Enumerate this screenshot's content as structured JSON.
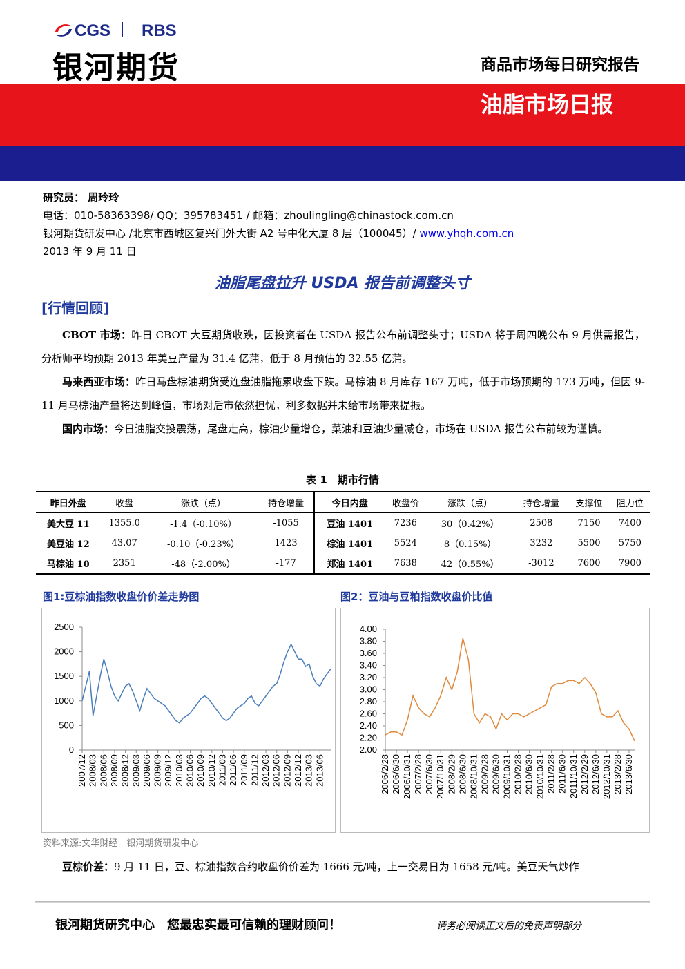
{
  "header": {
    "logo_left": "CGS",
    "logo_right": "RBS",
    "company": "银河期货",
    "report_series": "商品市场每日研究报告",
    "report_name": "油脂市场日报"
  },
  "author": {
    "label": "研究员：",
    "name": "周玲玲",
    "contact": "电话：010-58363398/ QQ：395783451 / 邮箱：zhoulingling@chinastock.com.cn",
    "address": "银河期货研发中心 /北京市西城区复兴门外大街 A2 号中化大厦 8 层（100045）/ ",
    "website": "www.yhqh.com.cn",
    "date": "2013 年 9 月 11 日"
  },
  "title": "油脂尾盘拉升 USDA 报告前调整头寸",
  "section": "[行情回顾]",
  "paragraphs": [
    {
      "lead": "CBOT 市场：",
      "text": "昨日 CBOT 大豆期货收跌，因投资者在 USDA 报告公布前调整头寸；USDA 将于周四晚公布 9 月供需报告，分析师平均预期 2013 年美豆产量为 31.4 亿蒲，低于 8 月预估的 32.55 亿蒲。"
    },
    {
      "lead": "马来西亚市场：",
      "text": "昨日马盘棕油期货受连盘油脂拖累收盘下跌。马棕油 8 月库存 167 万吨，低于市场预期的 173 万吨，但因 9-11 月马棕油产量将达到峰值，市场对后市依然担忧，利多数据并未给市场带来提振。"
    },
    {
      "lead": "国内市场：",
      "text": "今日油脂交投震荡，尾盘走高，棕油少量增仓，菜油和豆油少量减仓，市场在 USDA 报告公布前较为谨慎。"
    }
  ],
  "table": {
    "caption": "表 1　期市行情",
    "header": [
      "昨日外盘",
      "收盘",
      "涨跌（点）",
      "持仓增量",
      "今日内盘",
      "收盘价",
      "涨跌（点）",
      "持仓增量",
      "支撑位",
      "阻力位"
    ],
    "rows": [
      [
        "美大豆 11",
        "1355.0",
        "-1.4（-0.10%）",
        "-1055",
        "豆油 1401",
        "7236",
        "30（0.42%）",
        "2508",
        "7150",
        "7400"
      ],
      [
        "美豆油 12",
        "43.07",
        "-0.10（-0.23%）",
        "1423",
        "棕油 1401",
        "5524",
        "8（0.15%）",
        "3232",
        "5500",
        "5750"
      ],
      [
        "马棕油 10",
        "2351",
        "-48（-2.00%）",
        "-177",
        "郑油 1401",
        "7638",
        "42（0.55%）",
        "-3012",
        "7600",
        "7900"
      ]
    ]
  },
  "chart_data": [
    {
      "type": "line",
      "title": "图1:豆棕油指数收盘价价差走势图",
      "color": "#4a7ebb",
      "categories": [
        "2007/12",
        null,
        null,
        "2008/03",
        null,
        null,
        "2008/06",
        null,
        null,
        "2008/09",
        null,
        null,
        "2008/12",
        null,
        null,
        "2009/03",
        null,
        null,
        "2009/06",
        null,
        null,
        "2009/09",
        null,
        null,
        "2009/12",
        null,
        null,
        "2010/03",
        null,
        null,
        "2010/06",
        null,
        null,
        "2010/09",
        null,
        null,
        "2010/12",
        null,
        null,
        "2011/03",
        null,
        null,
        "2011/06",
        null,
        null,
        "2011/09",
        null,
        null,
        "2011/12",
        null,
        null,
        "2012/03",
        null,
        null,
        "2012/06",
        null,
        null,
        "2012/09",
        null,
        null,
        "2012/12",
        null,
        null,
        "2013/03",
        null,
        null,
        "2013/06",
        null,
        null,
        null
      ],
      "values": [
        1000,
        1300,
        1600,
        700,
        1100,
        1500,
        1850,
        1600,
        1300,
        1100,
        1000,
        1150,
        1300,
        1350,
        1200,
        1000,
        800,
        1050,
        1250,
        1150,
        1050,
        1000,
        950,
        900,
        800,
        700,
        600,
        550,
        650,
        700,
        750,
        850,
        950,
        1050,
        1100,
        1050,
        950,
        850,
        750,
        650,
        600,
        650,
        750,
        850,
        900,
        950,
        1050,
        1100,
        950,
        900,
        1000,
        1100,
        1200,
        1300,
        1350,
        1550,
        1800,
        2000,
        2150,
        2000,
        1850,
        1850,
        1700,
        1750,
        1500,
        1350,
        1300,
        1450,
        1550,
        1650
      ],
      "ylim": [
        0,
        2500
      ],
      "yticks": [
        0,
        500,
        1000,
        1500,
        2000,
        2500
      ],
      "grid": false
    },
    {
      "type": "line",
      "title": "图2：豆油与豆粕指数收盘价比值",
      "color": "#e08a3c",
      "categories": [
        "2006/2/28",
        null,
        "2006/6/30",
        null,
        "2006/10/31",
        null,
        "2007/2/28",
        null,
        "2007/6/30",
        null,
        "2007/10/31",
        null,
        "2008/2/29",
        null,
        "2008/6/30",
        null,
        "2008/10/31",
        null,
        "2009/2/28",
        null,
        "2009/6/30",
        null,
        "2009/10/31",
        null,
        "2010/2/28",
        null,
        "2010/6/30",
        null,
        "2010/10/31",
        null,
        "2011/2/28",
        null,
        "2011/6/30",
        null,
        "2011/10/31",
        null,
        "2012/2/29",
        null,
        "2012/6/30",
        null,
        "2012/10/31",
        null,
        "2013/2/28",
        null,
        "2013/6/30",
        null
      ],
      "values": [
        2.25,
        2.3,
        2.3,
        2.25,
        2.5,
        2.9,
        2.7,
        2.6,
        2.55,
        2.7,
        2.9,
        3.2,
        3.0,
        3.3,
        3.85,
        3.5,
        2.6,
        2.45,
        2.6,
        2.55,
        2.35,
        2.6,
        2.5,
        2.6,
        2.6,
        2.55,
        2.6,
        2.65,
        2.7,
        2.75,
        3.05,
        3.1,
        3.1,
        3.15,
        3.15,
        3.1,
        3.2,
        3.1,
        2.95,
        2.6,
        2.55,
        2.55,
        2.65,
        2.45,
        2.35,
        2.15
      ],
      "ylim": [
        2.0,
        4.0
      ],
      "yticks": [
        {
          "value": 2.0,
          "label": "2.00"
        },
        {
          "value": 2.2,
          "label": "2.20"
        },
        {
          "value": 2.4,
          "label": "2.40"
        },
        {
          "value": 2.6,
          "label": "2.60"
        },
        {
          "value": 2.8,
          "label": "2.80"
        },
        {
          "value": 3.0,
          "label": "3.00"
        },
        {
          "value": 3.2,
          "label": "3.20"
        },
        {
          "value": 3.4,
          "label": "3.40"
        },
        {
          "value": 3.6,
          "label": "3.60"
        },
        {
          "value": 3.8,
          "label": "3.80"
        },
        {
          "value": 4.0,
          "label": "4.00"
        }
      ],
      "grid": false
    }
  ],
  "source": "资料来源:文华财经　银河期货研发中心",
  "closing": {
    "lead": "豆棕价差：",
    "text": "9 月 11 日，豆、棕油指数合约收盘价价差为 1666 元/吨，上一交易日为 1658 元/吨。美豆天气炒作"
  },
  "footer": {
    "left": "银河期货研究中心　您最忠实最可信赖的理财顾问！",
    "right": "请务必阅读正文后的免责声明部分"
  }
}
